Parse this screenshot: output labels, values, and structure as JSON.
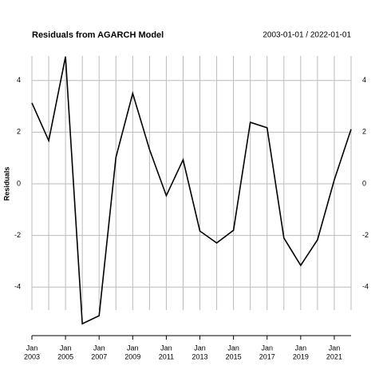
{
  "chart_data": {
    "type": "line",
    "title": "Residuals from AGARCH Model",
    "date_range": "2003-01-01 / 2022-01-01",
    "y_label": "Residuals",
    "x": [
      "2003-01",
      "2004-01",
      "2005-01",
      "2006-01",
      "2007-01",
      "2008-01",
      "2009-01",
      "2010-01",
      "2011-01",
      "2012-01",
      "2013-01",
      "2014-01",
      "2015-01",
      "2016-01",
      "2017-01",
      "2018-01",
      "2019-01",
      "2020-01",
      "2021-01",
      "2022-01"
    ],
    "series": [
      {
        "name": "Residuals",
        "color": "#000000",
        "values": [
          3.13,
          1.67,
          4.92,
          -5.42,
          -5.11,
          1.02,
          3.5,
          1.33,
          -0.46,
          0.93,
          -1.83,
          -2.29,
          -1.8,
          2.38,
          2.17,
          -2.1,
          -3.16,
          -2.17,
          0.15,
          2.11
        ]
      }
    ],
    "ylim": [
      -5.88,
      4.95
    ],
    "yticks": [
      -4,
      -2,
      0,
      2,
      4
    ],
    "xticks": [
      {
        "value": "2003-01",
        "label": [
          "Jan",
          "2003"
        ]
      },
      {
        "value": "2005-01",
        "label": [
          "Jan",
          "2005"
        ]
      },
      {
        "value": "2007-01",
        "label": [
          "Jan",
          "2007"
        ]
      },
      {
        "value": "2009-01",
        "label": [
          "Jan",
          "2009"
        ]
      },
      {
        "value": "2011-01",
        "label": [
          "Jan",
          "2011"
        ]
      },
      {
        "value": "2013-01",
        "label": [
          "Jan",
          "2013"
        ]
      },
      {
        "value": "2015-01",
        "label": [
          "Jan",
          "2015"
        ]
      },
      {
        "value": "2017-01",
        "label": [
          "Jan",
          "2017"
        ]
      },
      {
        "value": "2019-01",
        "label": [
          "Jan",
          "2019"
        ]
      },
      {
        "value": "2021-01",
        "label": [
          "Jan",
          "2021"
        ]
      }
    ],
    "grid": true
  }
}
